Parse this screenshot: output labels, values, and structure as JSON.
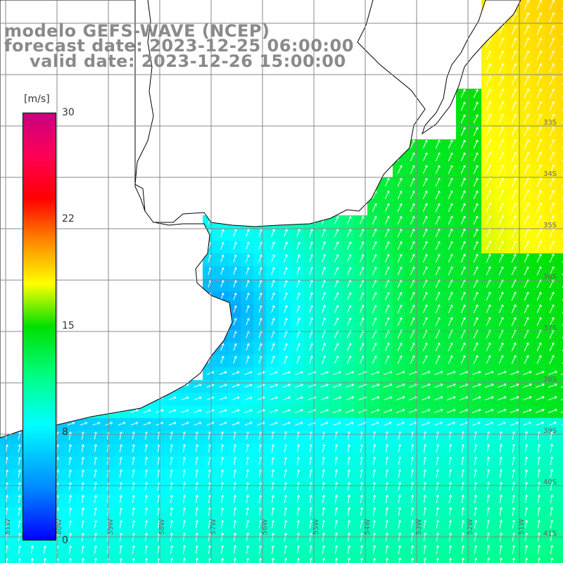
{
  "header": {
    "model_line": "modelo GEFS-WAVE (NCEP)",
    "forecast_line": "forecast date: 2023-12-25 06:00:00",
    "valid_line": "valid date: 2023-12-26 15:00:00"
  },
  "colorbar": {
    "unit": "[m/s]",
    "ticks": [
      "30",
      "22",
      "15",
      "8",
      "0"
    ],
    "min": 0,
    "max": 30,
    "colors": [
      "#0000ff",
      "#0088ff",
      "#00ffff",
      "#00ff88",
      "#00e000",
      "#ffff00",
      "#ff8800",
      "#ff0000",
      "#ff0055",
      "#c80080"
    ]
  },
  "map": {
    "longitude_labels": [
      "61W",
      "60W",
      "59W",
      "58W",
      "57W",
      "56W",
      "55W",
      "54W",
      "53W",
      "52W",
      "51W"
    ],
    "latitude_labels": [
      "33S",
      "34S",
      "35S",
      "36S",
      "37S",
      "38S",
      "39S",
      "40S",
      "41S"
    ],
    "land_color": "#ffffff",
    "grid_color": "#888888",
    "arrow_color": "#ffffff"
  }
}
